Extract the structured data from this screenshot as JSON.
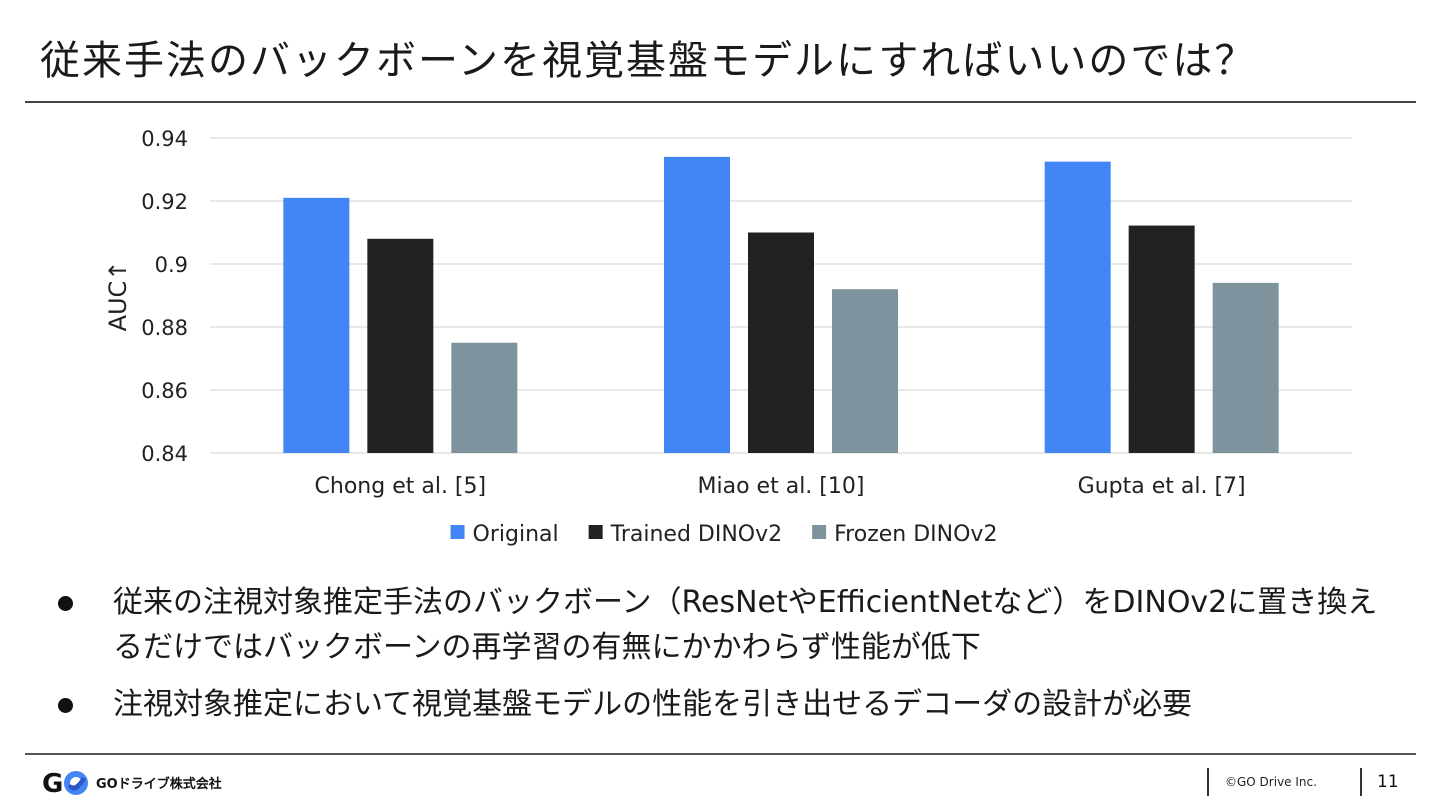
{
  "slide": {
    "title": "従来手法のバックボーンを視覚基盤モデルにすればいいのでは？"
  },
  "chart_data": {
    "type": "bar",
    "categories": [
      "Chong et al. [5]",
      "Miao et al. [10]",
      "Gupta et al. [7]"
    ],
    "series": [
      {
        "name": "Original",
        "color": "#4285F4",
        "values": [
          0.921,
          0.934,
          0.9325
        ]
      },
      {
        "name": "Trained DINOv2",
        "color": "#222222",
        "values": [
          0.908,
          0.91,
          0.9122
        ]
      },
      {
        "name": "Frozen DINOv2",
        "color": "#7E939E",
        "values": [
          0.875,
          0.892,
          0.894
        ]
      }
    ],
    "ylabel": "AUC↑",
    "ylim": [
      0.84,
      0.94
    ],
    "yticks": [
      0.84,
      0.86,
      0.88,
      0.9,
      0.92,
      0.94
    ],
    "ytick_labels": [
      "0.84",
      "0.86",
      "0.88",
      "0.9",
      "0.92",
      "0.94"
    ],
    "grid": true,
    "gridline_color": "#d9d9d9",
    "legend_position": "bottom"
  },
  "bullets": [
    "従来の注視対象推定手法のバックボーン（ResNetやEfficientNetなど）をDINOv2に置き換えるだけではバックボーンの再学習の有無にかかわらず性能が低下",
    "注視対象推定において視覚基盤モデルの性能を引き出せるデコーダの設計が必要"
  ],
  "footer": {
    "logo_letters": "GO",
    "company": "GOドライブ株式会社",
    "copyright": "©GO Drive Inc.",
    "page_number": "11"
  }
}
